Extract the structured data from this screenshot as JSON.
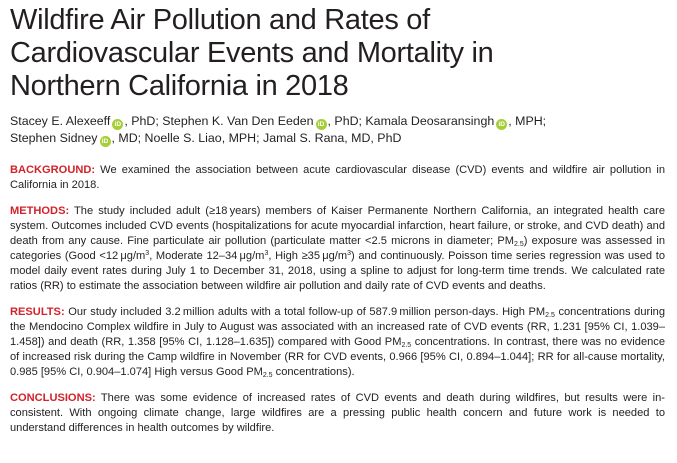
{
  "title": "Wildfire Air Pollution and Rates of Cardiovascular Events and Mortality in Northern California in 2018",
  "authors": {
    "a1": "Stacey E. Alexeeff",
    "a1_degree": ", PhD; ",
    "a2": "Stephen K. Van Den Eeden",
    "a2_degree": ", PhD; ",
    "a3": "Kamala Deosaransingh",
    "a3_degree": ", MPH;",
    "a4": "Stephen Sidney",
    "a4_degree": ", MD; ",
    "rest": "Noelle S. Liao, MPH; Jamal S. Rana, MD, PhD",
    "orcid_glyph": "iD",
    "orcid_color": "#a6ce39"
  },
  "background": {
    "label": "BACKGROUND:",
    "text": " We examined the association between acute cardiovascular disease (CVD) events and wildfire air pollution in California in 2018."
  },
  "methods": {
    "label": "METHODS:",
    "t1": " The study included adult (≥18 years) members of Kaiser Permanente Northern California, an integrated health care system. Outcomes included CVD events (hospitalizations for acute myocardial infarction, heart failure, or stroke, and CVD death) and death from any cause. Fine particulate air pollution (particulate matter <2.5 microns in diameter; PM",
    "sub1": "2.5",
    "t2": ") exposure was assessed in categories (Good <12 μg/m",
    "sup1": "3",
    "t3": ", Moderate 12–34 μg/m",
    "sup2": "3",
    "t4": ", High ≥35 μg/m",
    "sup3": "3",
    "t5": ") and continuously. Poisson time series regression was used to model daily event rates during July 1 to December 31, 2018, using a spline to adjust for long-term time trends. We calculated rate ratios (RR) to estimate the association between wildfire air pollution and daily rate of CVD events and deaths."
  },
  "results": {
    "label": "RESULTS:",
    "t1": " Our study included 3.2 million adults with a total follow-up of 587.9 million person-days. High PM",
    "sub1": "2.5",
    "t2": " concentrations during the Mendocino Complex wildfire in July to August was associated with an increased rate of CVD events (RR, 1.231 [95% CI, 1.039–1.458]) and death (RR, 1.358 [95% CI, 1.128–1.635]) compared with Good PM",
    "sub2": "2.5",
    "t3": " concentrations. In contrast, there was no evidence of increased risk during the Camp wildfire in November (RR for CVD events, 0.966 [95% CI, 0.894–1.044]; RR for all-cause mortality, 0.985 [95% CI, 0.904–1.074] High versus Good PM",
    "sub3": "2.5",
    "t4": " concentrations)."
  },
  "conclusions": {
    "label": "CONCLUSIONS:",
    "text": " There was some evidence of increased rates of CVD events and death during wildfires, but results were in-consistent. With ongoing climate change, large wildfires are a pressing public health concern and future work is needed to understand differences in health outcomes by wildfire."
  },
  "colors": {
    "label_red": "#d2232a",
    "text": "#231f20"
  }
}
